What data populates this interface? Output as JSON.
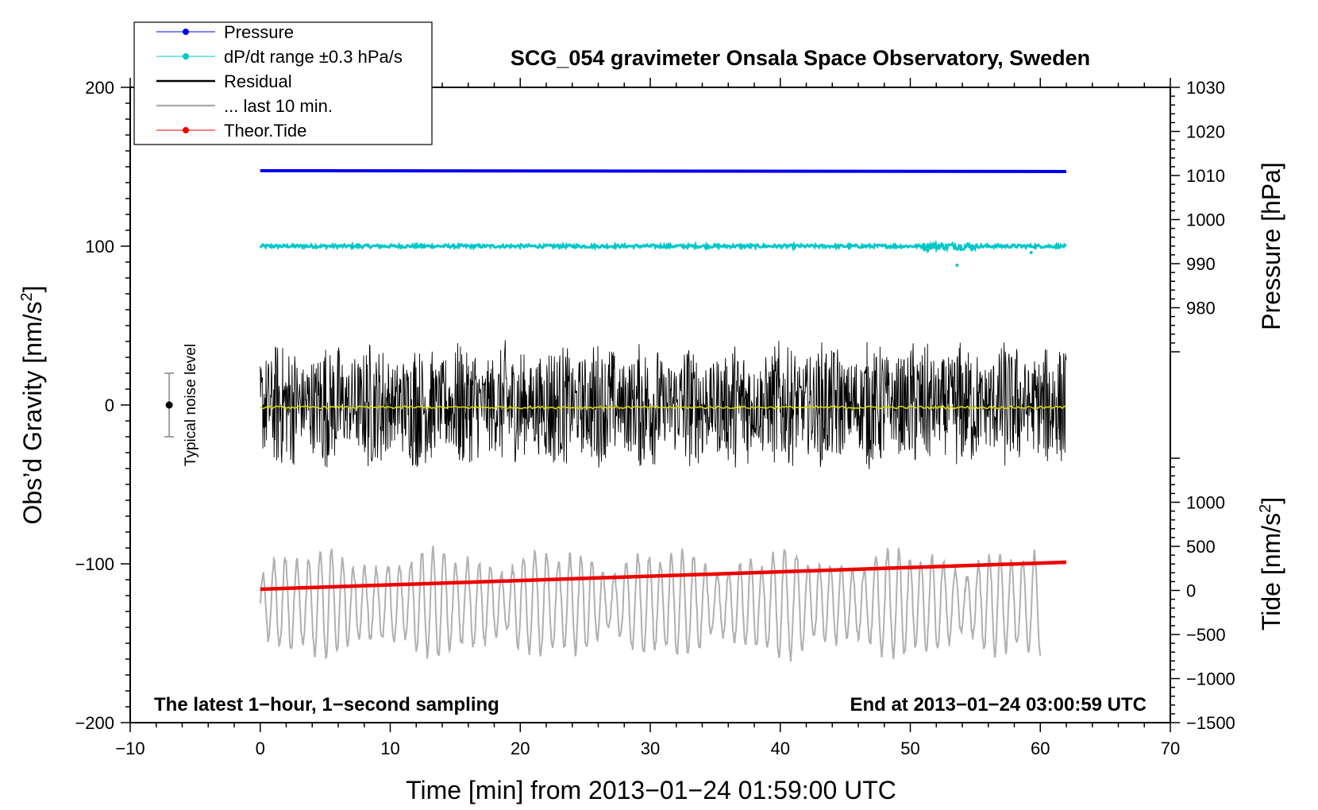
{
  "chart_data": {
    "type": "line",
    "title": "SCG_054 gravimeter Onsala Space Observatory, Sweden",
    "xlabel": "Time [min] from 2013−01−24 01:59:00 UTC",
    "ylabel_left": "Obs’d Gravity [nm/s",
    "ylabel_left_sup": "2",
    "ylabel_left_end": "]",
    "ylabel_right_pressure": "Pressure [hPa]",
    "ylabel_right_tide": "Tide [nm/s",
    "ylabel_right_tide_sup": "2",
    "ylabel_right_tide_end": "]",
    "xlim": [
      -10,
      70
    ],
    "ylim_left": [
      -200,
      200
    ],
    "pressure_axis_range": [
      970,
      1030
    ],
    "tide_axis_range": [
      -1500,
      1500
    ],
    "x_ticks": [
      {
        "value": -10,
        "label": "−10"
      },
      {
        "value": 0,
        "label": "0"
      },
      {
        "value": 10,
        "label": "10"
      },
      {
        "value": 20,
        "label": "20"
      },
      {
        "value": 30,
        "label": "30"
      },
      {
        "value": 40,
        "label": "40"
      },
      {
        "value": 50,
        "label": "50"
      },
      {
        "value": 60,
        "label": "60"
      },
      {
        "value": 70,
        "label": "70"
      }
    ],
    "y_left_ticks": [
      {
        "value": 200,
        "label": "200"
      },
      {
        "value": 100,
        "label": "100"
      },
      {
        "value": 0,
        "label": "0"
      },
      {
        "value": -100,
        "label": "−100"
      },
      {
        "value": -200,
        "label": "−200"
      }
    ],
    "pressure_ticks": [
      {
        "value": 1030,
        "label": "1030"
      },
      {
        "value": 1020,
        "label": "1020"
      },
      {
        "value": 1010,
        "label": "1010"
      },
      {
        "value": 1000,
        "label": "1000"
      },
      {
        "value": 990,
        "label": "990"
      },
      {
        "value": 980,
        "label": "980"
      }
    ],
    "tide_ticks": [
      {
        "value": 1000,
        "label": "1000"
      },
      {
        "value": 500,
        "label": "500"
      },
      {
        "value": 0,
        "label": "0"
      },
      {
        "value": -500,
        "label": "−500"
      },
      {
        "value": -1000,
        "label": "−1000"
      },
      {
        "value": -1500,
        "label": "−1500"
      }
    ],
    "legend": [
      {
        "name": "Pressure",
        "color": "#0000ee",
        "marker": true
      },
      {
        "name": "dP/dt range ±0.3 hPa/s",
        "color": "#00c8c8",
        "marker": true
      },
      {
        "name": "Residual",
        "color": "#000000",
        "marker": false
      },
      {
        "name": "... last 10 min.",
        "color": "#b0b0b0",
        "marker": false
      },
      {
        "name": "Theor.Tide",
        "color": "#ee0000",
        "marker": true
      }
    ],
    "series": [
      {
        "name": "Pressure",
        "x_range": [
          0,
          62
        ],
        "y_start": 147.5,
        "y_end": 147.0,
        "unit": "gravity-scale"
      },
      {
        "name": "dP/dt range ±0.3 hPa/s",
        "x_range": [
          0,
          62
        ],
        "y_center": 100,
        "noise": 1.0
      },
      {
        "name": "Residual",
        "x_range": [
          0,
          62
        ],
        "y_center": 0,
        "y_min": -62,
        "y_max": 62
      },
      {
        "name": "Residual mean",
        "x_range": [
          0,
          62
        ],
        "y_center": -1.5,
        "color": "#d8d800"
      },
      {
        "name": "... last 10 min.",
        "x_range": [
          0,
          60
        ],
        "y_center": -125,
        "y_min": -168,
        "y_max": -76
      },
      {
        "name": "Theor.Tide",
        "x_range": [
          0,
          62
        ],
        "y_start": -116,
        "y_end": -99
      }
    ],
    "noise_bar": {
      "x": -7,
      "center": 0,
      "half_range": 20,
      "label": "Typical noise level"
    },
    "annotations": {
      "left": "The latest 1−hour, 1−second sampling",
      "right": "End at 2013−01−24 03:00:59 UTC"
    }
  }
}
